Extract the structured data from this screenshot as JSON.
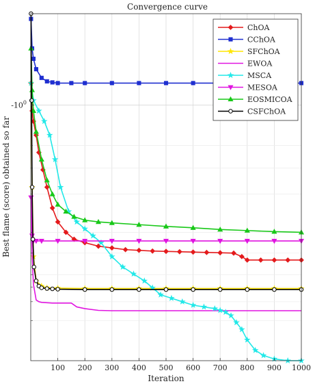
{
  "chart_data": {
    "type": "line",
    "title": "Convergence curve",
    "xlabel": "Iteration",
    "ylabel": "Best flame (score) obtained so far",
    "xlim": [
      0,
      1000
    ],
    "ylim": [
      0,
      1
    ],
    "y_scale": "symlog",
    "x_ticks": [
      100,
      200,
      300,
      400,
      500,
      600,
      700,
      800,
      900,
      1000
    ],
    "x_tick_labels": [
      "100",
      "200",
      "300",
      "400",
      "500",
      "600",
      "700",
      "800",
      "900",
      "1000"
    ],
    "y_tick_value": 0.737,
    "y_tick_label_base": "-10",
    "y_tick_label_exp": "0",
    "y_minor_ticks": [
      0.115,
      0.17,
      0.212,
      0.248,
      0.31,
      0.37,
      0.48,
      0.555,
      0.62
    ],
    "grid": true,
    "legend_position": "top-right",
    "series": [
      {
        "name": "ChOA",
        "color": "#e41a1c",
        "marker": "diamond",
        "x": [
          1,
          5,
          10,
          20,
          30,
          45,
          60,
          80,
          100,
          130,
          160,
          200,
          250,
          300,
          350,
          400,
          450,
          500,
          550,
          600,
          650,
          700,
          750,
          780,
          800,
          850,
          900,
          950,
          1000
        ],
        "y": [
          0.8,
          0.72,
          0.69,
          0.65,
          0.6,
          0.55,
          0.5,
          0.44,
          0.4,
          0.37,
          0.35,
          0.34,
          0.33,
          0.325,
          0.32,
          0.318,
          0.316,
          0.315,
          0.314,
          0.313,
          0.312,
          0.311,
          0.31,
          0.3,
          0.29,
          0.29,
          0.29,
          0.29,
          0.29
        ]
      },
      {
        "name": "CChOA",
        "color": "#1f2fd0",
        "marker": "square",
        "x": [
          1,
          5,
          10,
          20,
          40,
          60,
          80,
          100,
          150,
          200,
          300,
          400,
          500,
          600,
          700,
          800,
          900,
          1000
        ],
        "y": [
          0.985,
          0.9,
          0.87,
          0.84,
          0.815,
          0.805,
          0.802,
          0.8,
          0.8,
          0.8,
          0.8,
          0.8,
          0.8,
          0.8,
          0.8,
          0.8,
          0.8,
          0.8
        ]
      },
      {
        "name": "SFChOA",
        "color": "#ffe600",
        "marker": "star",
        "x": [
          1,
          5,
          10,
          20,
          40,
          60,
          100,
          200,
          300,
          400,
          500,
          600,
          700,
          800,
          900,
          1000
        ],
        "y": [
          0.8,
          0.5,
          0.3,
          0.23,
          0.215,
          0.21,
          0.209,
          0.208,
          0.208,
          0.208,
          0.208,
          0.208,
          0.208,
          0.208,
          0.208,
          0.208
        ]
      },
      {
        "name": "EWOA",
        "color": "#e014e0",
        "marker": "none",
        "x": [
          1,
          5,
          10,
          20,
          30,
          40,
          60,
          80,
          150,
          170,
          200,
          250,
          300,
          400,
          500,
          600,
          700,
          800,
          900,
          1000
        ],
        "y": [
          0.47,
          0.3,
          0.22,
          0.175,
          0.17,
          0.168,
          0.167,
          0.166,
          0.166,
          0.155,
          0.15,
          0.145,
          0.144,
          0.144,
          0.144,
          0.144,
          0.144,
          0.144,
          0.144,
          0.144
        ]
      },
      {
        "name": "MSCA",
        "color": "#22e8e8",
        "marker": "star",
        "x": [
          1,
          10,
          30,
          50,
          70,
          90,
          110,
          140,
          170,
          200,
          230,
          260,
          300,
          340,
          380,
          420,
          450,
          480,
          520,
          560,
          600,
          640,
          680,
          700,
          720,
          740,
          760,
          780,
          800,
          830,
          860,
          900,
          950,
          1000
        ],
        "y": [
          0.8,
          0.75,
          0.72,
          0.69,
          0.65,
          0.58,
          0.5,
          0.43,
          0.4,
          0.38,
          0.36,
          0.34,
          0.3,
          0.27,
          0.25,
          0.23,
          0.21,
          0.19,
          0.18,
          0.17,
          0.16,
          0.155,
          0.15,
          0.145,
          0.14,
          0.13,
          0.11,
          0.09,
          0.06,
          0.03,
          0.015,
          0.005,
          0.0,
          0.0
        ]
      },
      {
        "name": "MESOA",
        "color": "#e014e0",
        "marker": "triangle-down",
        "x": [
          1,
          5,
          10,
          20,
          40,
          100,
          200,
          300,
          400,
          500,
          600,
          700,
          800,
          900,
          1000
        ],
        "y": [
          0.47,
          0.36,
          0.345,
          0.345,
          0.345,
          0.345,
          0.345,
          0.345,
          0.345,
          0.345,
          0.345,
          0.345,
          0.345,
          0.345,
          0.345
        ]
      },
      {
        "name": "EOSMICOA",
        "color": "#18c818",
        "marker": "triangle-up",
        "x": [
          1,
          5,
          10,
          20,
          40,
          60,
          80,
          100,
          130,
          160,
          200,
          250,
          300,
          400,
          500,
          600,
          700,
          800,
          900,
          1000
        ],
        "y": [
          0.9,
          0.78,
          0.72,
          0.66,
          0.58,
          0.52,
          0.48,
          0.45,
          0.43,
          0.415,
          0.405,
          0.4,
          0.397,
          0.392,
          0.387,
          0.383,
          0.378,
          0.375,
          0.372,
          0.37
        ]
      },
      {
        "name": "CSFChOA",
        "color": "#000000",
        "marker": "circle",
        "x": [
          1,
          3,
          5,
          8,
          12,
          20,
          30,
          40,
          60,
          80,
          100,
          200,
          300,
          400,
          500,
          600,
          700,
          800,
          900,
          1000
        ],
        "y": [
          1.0,
          0.75,
          0.5,
          0.35,
          0.27,
          0.23,
          0.215,
          0.21,
          0.208,
          0.207,
          0.206,
          0.205,
          0.205,
          0.205,
          0.205,
          0.205,
          0.205,
          0.205,
          0.205,
          0.205
        ]
      }
    ]
  }
}
